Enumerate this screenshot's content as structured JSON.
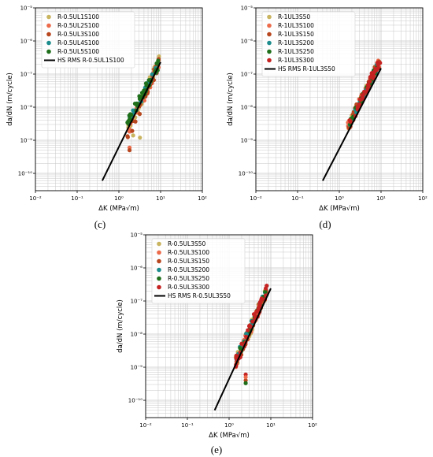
{
  "figure": {
    "panels": [
      {
        "letter": "(c)"
      },
      {
        "letter": "(d)"
      },
      {
        "letter": "(e)"
      }
    ]
  },
  "colors": {
    "S50": "#c9b460",
    "S100": "#ec6a4a",
    "S150": "#b8471f",
    "S200": "#1c8c8c",
    "S250": "#1e6e1a",
    "S300": "#c52222",
    "L1": "#c9b460",
    "L2": "#ec6a4a",
    "L3": "#b8471f",
    "L4": "#1c8c8c",
    "L5": "#1e6e1a",
    "fit": "#000000",
    "grid": "#c8c8c8"
  },
  "chart_data": [
    {
      "panel": "(c)",
      "type": "scatter",
      "xlabel": "ΔK (MPa√m)",
      "ylabel": "da/dN (m/cycle)",
      "xscale": "log",
      "yscale": "log",
      "xlim": [
        0.01,
        100
      ],
      "ylim": [
        3e-11,
        1e-05
      ],
      "xticks": [
        "10⁻²",
        "10⁻¹",
        "10⁰",
        "10¹",
        "10²"
      ],
      "yticks": [
        "10⁻¹⁰",
        "10⁻⁹",
        "10⁻⁸",
        "10⁻⁷",
        "10⁻⁶",
        "10⁻⁵"
      ],
      "grid": true,
      "legend_position": "upper-left",
      "series": [
        {
          "name": "R-0.5UL1S100",
          "color_key": "L1",
          "x_range": [
            1.6,
            9.5
          ],
          "y_range": [
            2e-09,
            2.5e-07
          ],
          "spread": 0.18,
          "count": 40
        },
        {
          "name": "R-0.5UL2S100",
          "color_key": "L2",
          "x_range": [
            1.6,
            9.0
          ],
          "y_range": [
            1.5e-09,
            2.2e-07
          ],
          "spread": 0.16,
          "count": 30
        },
        {
          "name": "R-0.5UL3S100",
          "color_key": "L3",
          "x_range": [
            1.6,
            9.0
          ],
          "y_range": [
            1.2e-09,
            2e-07
          ],
          "spread": 0.18,
          "count": 30
        },
        {
          "name": "R-0.5UL4S100",
          "color_key": "L4",
          "x_range": [
            1.6,
            8.5
          ],
          "y_range": [
            3e-09,
            1.8e-07
          ],
          "spread": 0.12,
          "count": 25
        },
        {
          "name": "R-0.5UL5S100",
          "color_key": "L5",
          "x_range": [
            1.6,
            9.0
          ],
          "y_range": [
            3.5e-09,
            2e-07
          ],
          "spread": 0.14,
          "count": 45
        }
      ],
      "outliers": [
        {
          "x": 1.8,
          "y": 6e-10,
          "color_key": "L2"
        },
        {
          "x": 1.8,
          "y": 5e-10,
          "color_key": "L3"
        },
        {
          "x": 3.2,
          "y": 1.2e-09,
          "color_key": "L1"
        },
        {
          "x": 2.2,
          "y": 1.4e-09,
          "color_key": "L1"
        }
      ],
      "fit": {
        "name": "HS RMS R-0.5UL1S100",
        "x": [
          0.4,
          10
        ],
        "y": [
          6e-11,
          2.3e-07
        ],
        "color_key": "fit"
      }
    },
    {
      "panel": "(d)",
      "type": "scatter",
      "xlabel": "ΔK (MPa√m)",
      "ylabel": "da/dN (m/cycle)",
      "xscale": "log",
      "yscale": "log",
      "xlim": [
        0.01,
        100
      ],
      "ylim": [
        3e-11,
        1e-05
      ],
      "xticks": [
        "10⁻²",
        "10⁻¹",
        "10⁰",
        "10¹",
        "10²"
      ],
      "yticks": [
        "10⁻¹⁰",
        "10⁻⁹",
        "10⁻⁸",
        "10⁻⁷",
        "10⁻⁶",
        "10⁻⁵"
      ],
      "grid": true,
      "legend_position": "upper-left",
      "series": [
        {
          "name": "R-1UL3S50",
          "color_key": "S50",
          "x_range": [
            1.6,
            9.5
          ],
          "y_range": [
            2.5e-09,
            2.5e-07
          ],
          "spread": 0.15,
          "count": 30
        },
        {
          "name": "R-1UL3S100",
          "color_key": "S100",
          "x_range": [
            1.6,
            9.5
          ],
          "y_range": [
            2.5e-09,
            2.5e-07
          ],
          "spread": 0.15,
          "count": 30
        },
        {
          "name": "R-1UL3S150",
          "color_key": "S150",
          "x_range": [
            1.6,
            9.5
          ],
          "y_range": [
            2.5e-09,
            2.5e-07
          ],
          "spread": 0.15,
          "count": 30
        },
        {
          "name": "R-1UL3S200",
          "color_key": "S200",
          "x_range": [
            1.6,
            9.0
          ],
          "y_range": [
            2.5e-09,
            2.2e-07
          ],
          "spread": 0.12,
          "count": 20
        },
        {
          "name": "R-1UL3S250",
          "color_key": "S250",
          "x_range": [
            1.6,
            9.0
          ],
          "y_range": [
            2.5e-09,
            2.2e-07
          ],
          "spread": 0.12,
          "count": 20
        },
        {
          "name": "R-1UL3S300",
          "color_key": "S300",
          "x_range": [
            1.6,
            9.5
          ],
          "y_range": [
            2.5e-09,
            2.5e-07
          ],
          "spread": 0.15,
          "count": 40
        }
      ],
      "outliers": [],
      "fit": {
        "name": "HS RMS R-1UL3S50",
        "x": [
          0.4,
          10
        ],
        "y": [
          6e-11,
          1.5e-07
        ],
        "color_key": "fit"
      }
    },
    {
      "panel": "(e)",
      "type": "scatter",
      "xlabel": "ΔK (MPa√m)",
      "ylabel": "da/dN (m/cycle)",
      "xscale": "log",
      "yscale": "log",
      "xlim": [
        0.01,
        100
      ],
      "ylim": [
        3e-11,
        1e-05
      ],
      "xticks": [
        "10⁻²",
        "10⁻¹",
        "10⁰",
        "10¹",
        "10²"
      ],
      "yticks": [
        "10⁻¹⁰",
        "10⁻⁹",
        "10⁻⁸",
        "10⁻⁷",
        "10⁻⁶",
        "10⁻⁵"
      ],
      "grid": true,
      "legend_position": "upper-left",
      "series": [
        {
          "name": "R-0.5UL3S50",
          "color_key": "S50",
          "x_range": [
            1.4,
            8.0
          ],
          "y_range": [
            1.3e-09,
            2e-07
          ],
          "spread": 0.18,
          "count": 35
        },
        {
          "name": "R-0.5UL3S100",
          "color_key": "S100",
          "x_range": [
            1.4,
            8.0
          ],
          "y_range": [
            1.3e-09,
            2e-07
          ],
          "spread": 0.16,
          "count": 30
        },
        {
          "name": "R-0.5UL3S150",
          "color_key": "S150",
          "x_range": [
            1.4,
            8.0
          ],
          "y_range": [
            1.3e-09,
            2e-07
          ],
          "spread": 0.16,
          "count": 30
        },
        {
          "name": "R-0.5UL3S200",
          "color_key": "S200",
          "x_range": [
            1.4,
            7.5
          ],
          "y_range": [
            1.5e-09,
            1.8e-07
          ],
          "spread": 0.12,
          "count": 20
        },
        {
          "name": "R-0.5UL3S250",
          "color_key": "S250",
          "x_range": [
            1.4,
            7.5
          ],
          "y_range": [
            1.5e-09,
            1.8e-07
          ],
          "spread": 0.12,
          "count": 20
        },
        {
          "name": "R-0.5UL3S300",
          "color_key": "S300",
          "x_range": [
            1.4,
            8.0
          ],
          "y_range": [
            1.3e-09,
            2.2e-07
          ],
          "spread": 0.18,
          "count": 40
        }
      ],
      "outliers": [
        {
          "x": 2.5,
          "y": 6e-10,
          "color_key": "S300"
        },
        {
          "x": 2.5,
          "y": 4e-10,
          "color_key": "S150"
        },
        {
          "x": 2.5,
          "y": 3.3e-10,
          "color_key": "S250"
        },
        {
          "x": 2.5,
          "y": 5e-10,
          "color_key": "S100"
        }
      ],
      "fit": {
        "name": "HS RMS R-0.5UL3S50",
        "x": [
          0.45,
          10
        ],
        "y": [
          5e-11,
          2.4e-07
        ],
        "color_key": "fit"
      }
    }
  ]
}
